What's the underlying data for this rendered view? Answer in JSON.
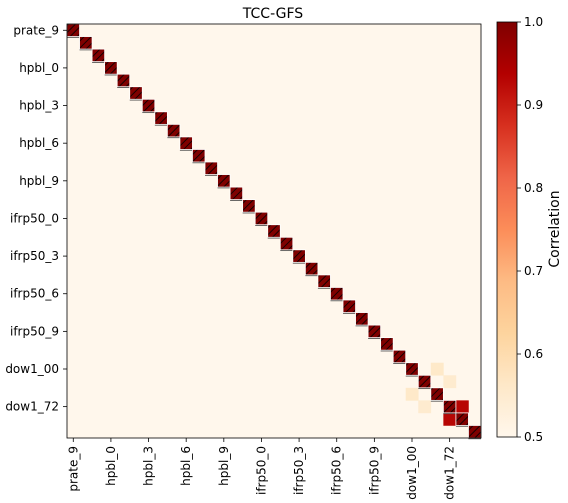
{
  "chart_data": {
    "type": "heatmap",
    "title": "TCC-GFS",
    "colorbar_label": "Correlation",
    "colorbar_range": [
      0.5,
      1.0
    ],
    "colorbar_ticks": [
      "0.5",
      "0.6",
      "0.7",
      "0.8",
      "0.9",
      "1.0"
    ],
    "colormap": "OrRd",
    "n": 33,
    "tick_labels": [
      "prate_9",
      "hpbl_0",
      "hpbl_3",
      "hpbl_6",
      "hpbl_9",
      "ifrp50_0",
      "ifrp50_3",
      "ifrp50_6",
      "ifrp50_9",
      "dow1_00",
      "dow1_72"
    ],
    "tick_indices": [
      0,
      3,
      6,
      9,
      12,
      15,
      18,
      21,
      24,
      27,
      30
    ],
    "diagonal_value": 1.0,
    "diagonal_hatched": true,
    "off_diagonal": [
      {
        "row": 27,
        "col": 29,
        "value": 0.56
      },
      {
        "row": 29,
        "col": 27,
        "value": 0.56
      },
      {
        "row": 28,
        "col": 30,
        "value": 0.55
      },
      {
        "row": 30,
        "col": 28,
        "value": 0.55
      },
      {
        "row": 30,
        "col": 31,
        "value": 0.93
      },
      {
        "row": 31,
        "col": 30,
        "value": 0.93
      }
    ],
    "background_value": 0.5
  }
}
